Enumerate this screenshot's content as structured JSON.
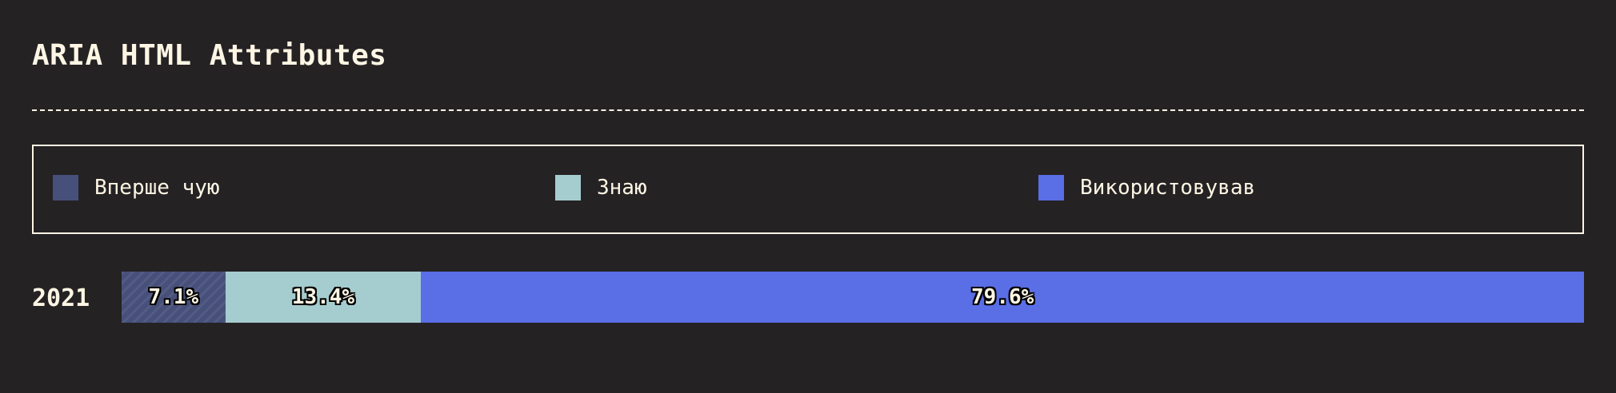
{
  "title": "ARIA HTML Attributes",
  "colors": {
    "background": "#252224",
    "foreground": "#fef6e4",
    "heard": "#47507a",
    "know": "#a5cdcf",
    "used": "#5a6ee6"
  },
  "legend": {
    "items": [
      {
        "label": "Вперше чую",
        "color": "#47507a"
      },
      {
        "label": "Знаю",
        "color": "#a5cdcf"
      },
      {
        "label": "Використовував",
        "color": "#5a6ee6"
      }
    ]
  },
  "chart_data": {
    "type": "bar",
    "orientation": "horizontal",
    "stacked": true,
    "normalized": true,
    "title": "ARIA HTML Attributes",
    "categories": [
      "2021"
    ],
    "series": [
      {
        "name": "Вперше чую",
        "values": [
          7.1
        ],
        "labels": [
          "7.1%"
        ]
      },
      {
        "name": "Знаю",
        "values": [
          13.4
        ],
        "labels": [
          "13.4%"
        ]
      },
      {
        "name": "Використовував",
        "values": [
          79.6
        ],
        "labels": [
          "79.6%"
        ]
      }
    ],
    "xlim": [
      0,
      100
    ],
    "grid": false,
    "legend_position": "top"
  }
}
